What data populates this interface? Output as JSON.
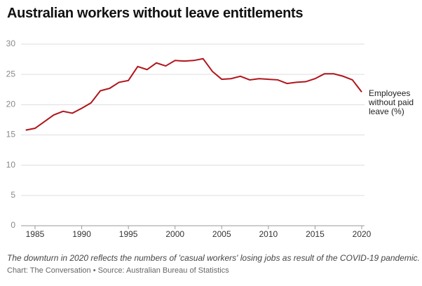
{
  "chart_data": {
    "type": "line",
    "title": "Australian workers without leave entitlements",
    "caption": "The downturn in 2020 reflects the numbers of 'casual workers' losing jobs as result of the COVID-19 pandemic.",
    "source": "Chart: The Conversation • Source: Australian Bureau of Statistics",
    "x": [
      1984,
      1985,
      1986,
      1987,
      1988,
      1989,
      1990,
      1991,
      1992,
      1993,
      1994,
      1995,
      1996,
      1997,
      1998,
      1999,
      2000,
      2001,
      2002,
      2003,
      2004,
      2005,
      2006,
      2007,
      2008,
      2009,
      2010,
      2011,
      2012,
      2013,
      2014,
      2015,
      2016,
      2017,
      2018,
      2019,
      2020
    ],
    "series": [
      {
        "name": "Employees without paid leave (%)",
        "color": "#b0151b",
        "values": [
          15.8,
          16.1,
          17.2,
          18.3,
          18.9,
          18.6,
          19.4,
          20.3,
          22.3,
          22.7,
          23.7,
          24.0,
          26.3,
          25.8,
          26.9,
          26.4,
          27.3,
          27.2,
          27.3,
          27.6,
          25.5,
          24.2,
          24.3,
          24.7,
          24.1,
          24.3,
          24.2,
          24.1,
          23.5,
          23.7,
          23.8,
          24.3,
          25.1,
          25.1,
          24.7,
          24.1,
          22.1
        ]
      }
    ],
    "xlim": [
      1983.5,
      2020.3
    ],
    "xticks": [
      1985,
      1990,
      1995,
      2000,
      2005,
      2010,
      2015,
      2020
    ],
    "ylim": [
      0,
      30
    ],
    "yticks": [
      0,
      5,
      10,
      15,
      20,
      25,
      30
    ],
    "grid": true
  }
}
